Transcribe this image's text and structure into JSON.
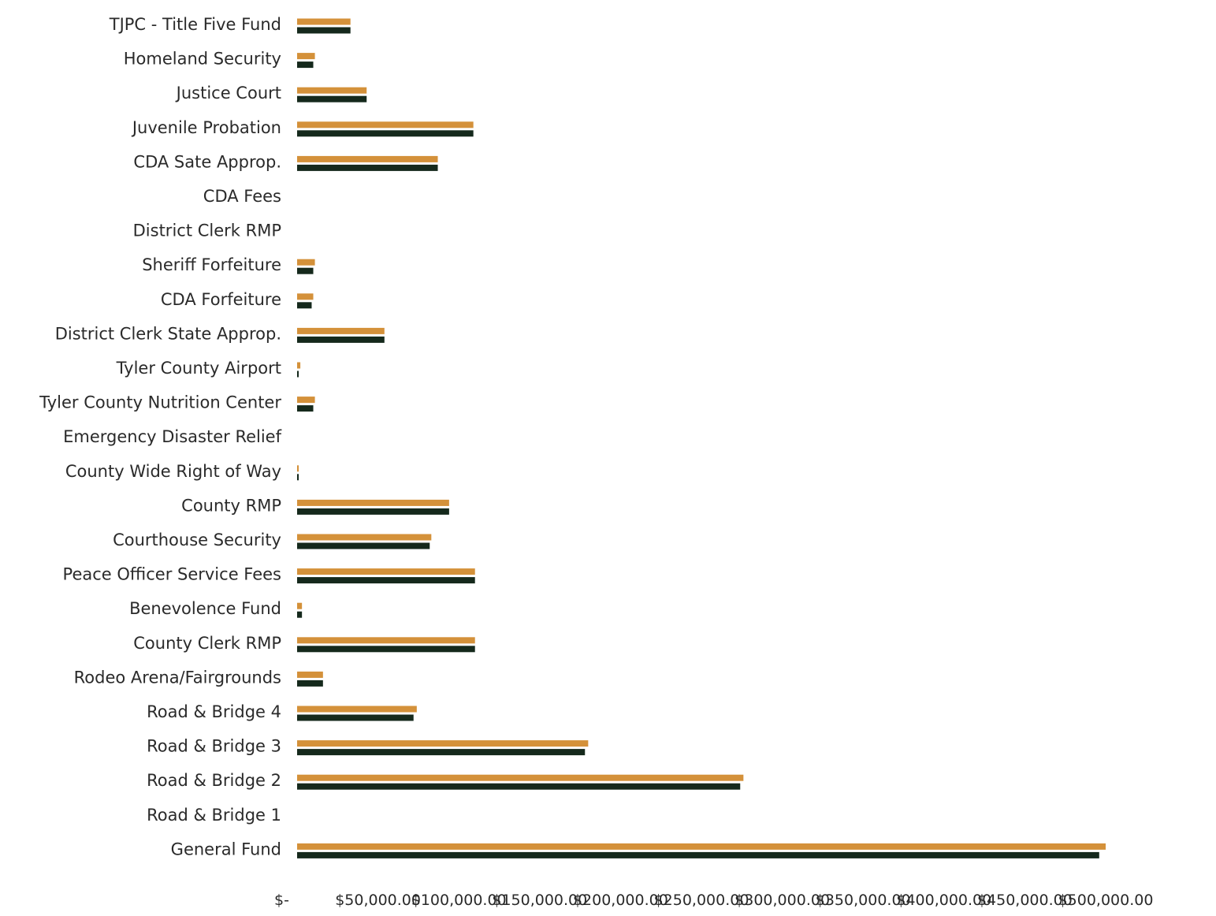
{
  "chart_data": {
    "type": "bar",
    "orientation": "horizontal",
    "categories": [
      "TJPC - Title Five Fund",
      "Homeland Security",
      "Justice Court",
      "Juvenile Probation",
      "CDA Sate Approp.",
      "CDA Fees",
      "District Clerk RMP",
      "Sheriff Forfeiture",
      "CDA Forfeiture",
      "District Clerk State Approp.",
      "Tyler County Airport",
      "Tyler County Nutrition Center",
      "Emergency Disaster Relief",
      "County Wide Right of Way",
      "County RMP",
      "Courthouse Security",
      "Peace Officer Service Fees",
      "Benevolence Fund",
      "County Clerk RMP",
      "Rodeo Arena/Fairgrounds",
      "Road & Bridge 4",
      "Road & Bridge 3",
      "Road & Bridge 2",
      "Road & Bridge 1",
      "General Fund"
    ],
    "series": [
      {
        "color": "#d4913a",
        "values": [
          33000,
          11000,
          43000,
          109000,
          87000,
          0,
          0,
          11000,
          10000,
          54000,
          2000,
          11000,
          0,
          1000,
          94000,
          83000,
          110000,
          3000,
          110000,
          16000,
          74000,
          180000,
          276000,
          0,
          500000
        ]
      },
      {
        "color": "#15291c",
        "values": [
          33000,
          10000,
          43000,
          109000,
          87000,
          0,
          0,
          10000,
          9000,
          54000,
          1000,
          10000,
          0,
          1000,
          94000,
          82000,
          110000,
          3000,
          110000,
          16000,
          72000,
          178000,
          274000,
          0,
          496000
        ]
      }
    ],
    "xlim": [
      0,
      500000
    ],
    "xticks": [
      "$-",
      "$50,000.00",
      "$100,000.00",
      "$150,000.00",
      "$200,000.00",
      "$250,000.00",
      "$300,000.00",
      "$350,000.00",
      "$400,000.00",
      "$450,000.00",
      "$500,000.00"
    ],
    "grid": false,
    "legend": "none"
  }
}
